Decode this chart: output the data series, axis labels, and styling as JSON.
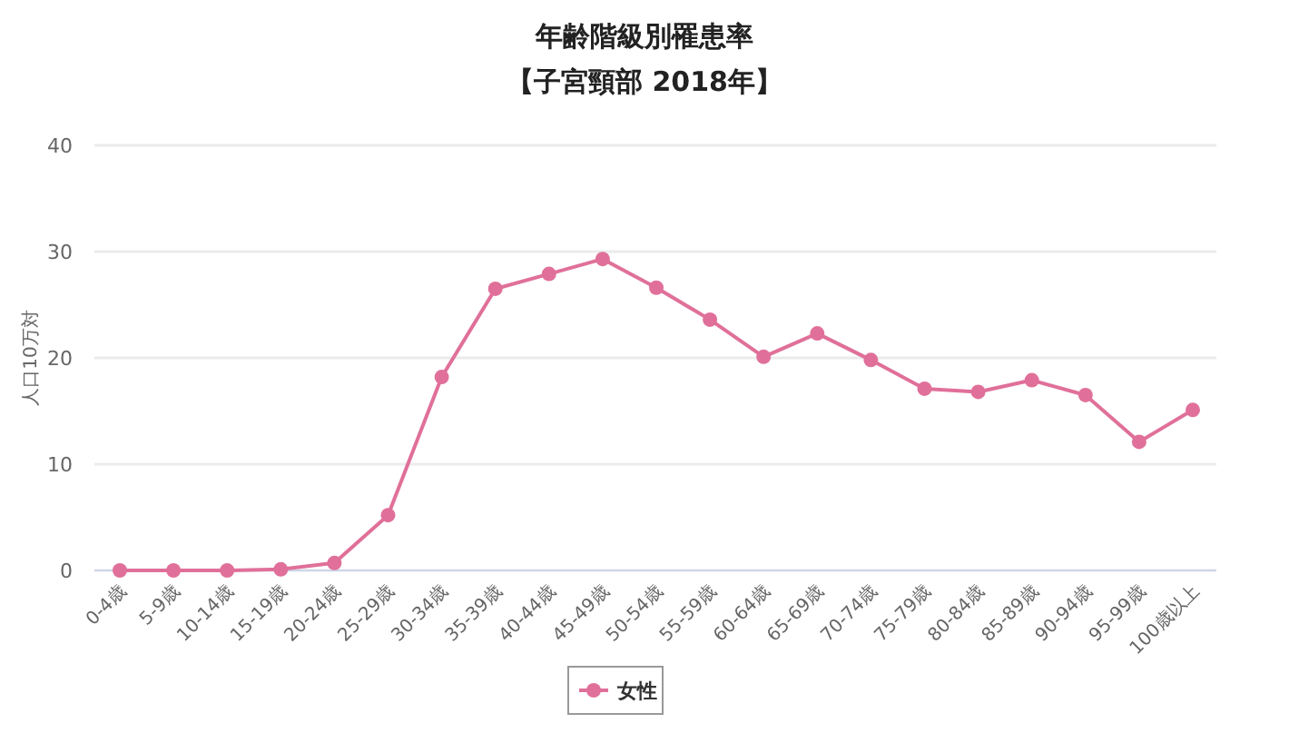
{
  "chart_data": {
    "type": "line",
    "title": "年齢階級別罹患率",
    "subtitle": "【子宮頸部 2018年】",
    "ylabel": "人口10万対",
    "categories": [
      "0-4歳",
      "5-9歳",
      "10-14歳",
      "15-19歳",
      "20-24歳",
      "25-29歳",
      "30-34歳",
      "35-39歳",
      "40-44歳",
      "45-49歳",
      "50-54歳",
      "55-59歳",
      "60-64歳",
      "65-69歳",
      "70-74歳",
      "75-79歳",
      "80-84歳",
      "85-89歳",
      "90-94歳",
      "95-99歳",
      "100歳以上"
    ],
    "series": [
      {
        "name": "女性",
        "color": "#e07099",
        "values": [
          0,
          0,
          0,
          0.1,
          0.7,
          5.2,
          18.2,
          26.5,
          27.9,
          29.3,
          26.6,
          23.6,
          20.1,
          22.3,
          19.8,
          17.1,
          16.8,
          17.9,
          16.5,
          12.1,
          15.1
        ]
      }
    ],
    "ylim": [
      0,
      40
    ],
    "yticks": [
      0,
      10,
      20,
      30,
      40
    ],
    "grid": "y",
    "legend": "bottom",
    "marker": "circle",
    "line_style": "solid"
  }
}
